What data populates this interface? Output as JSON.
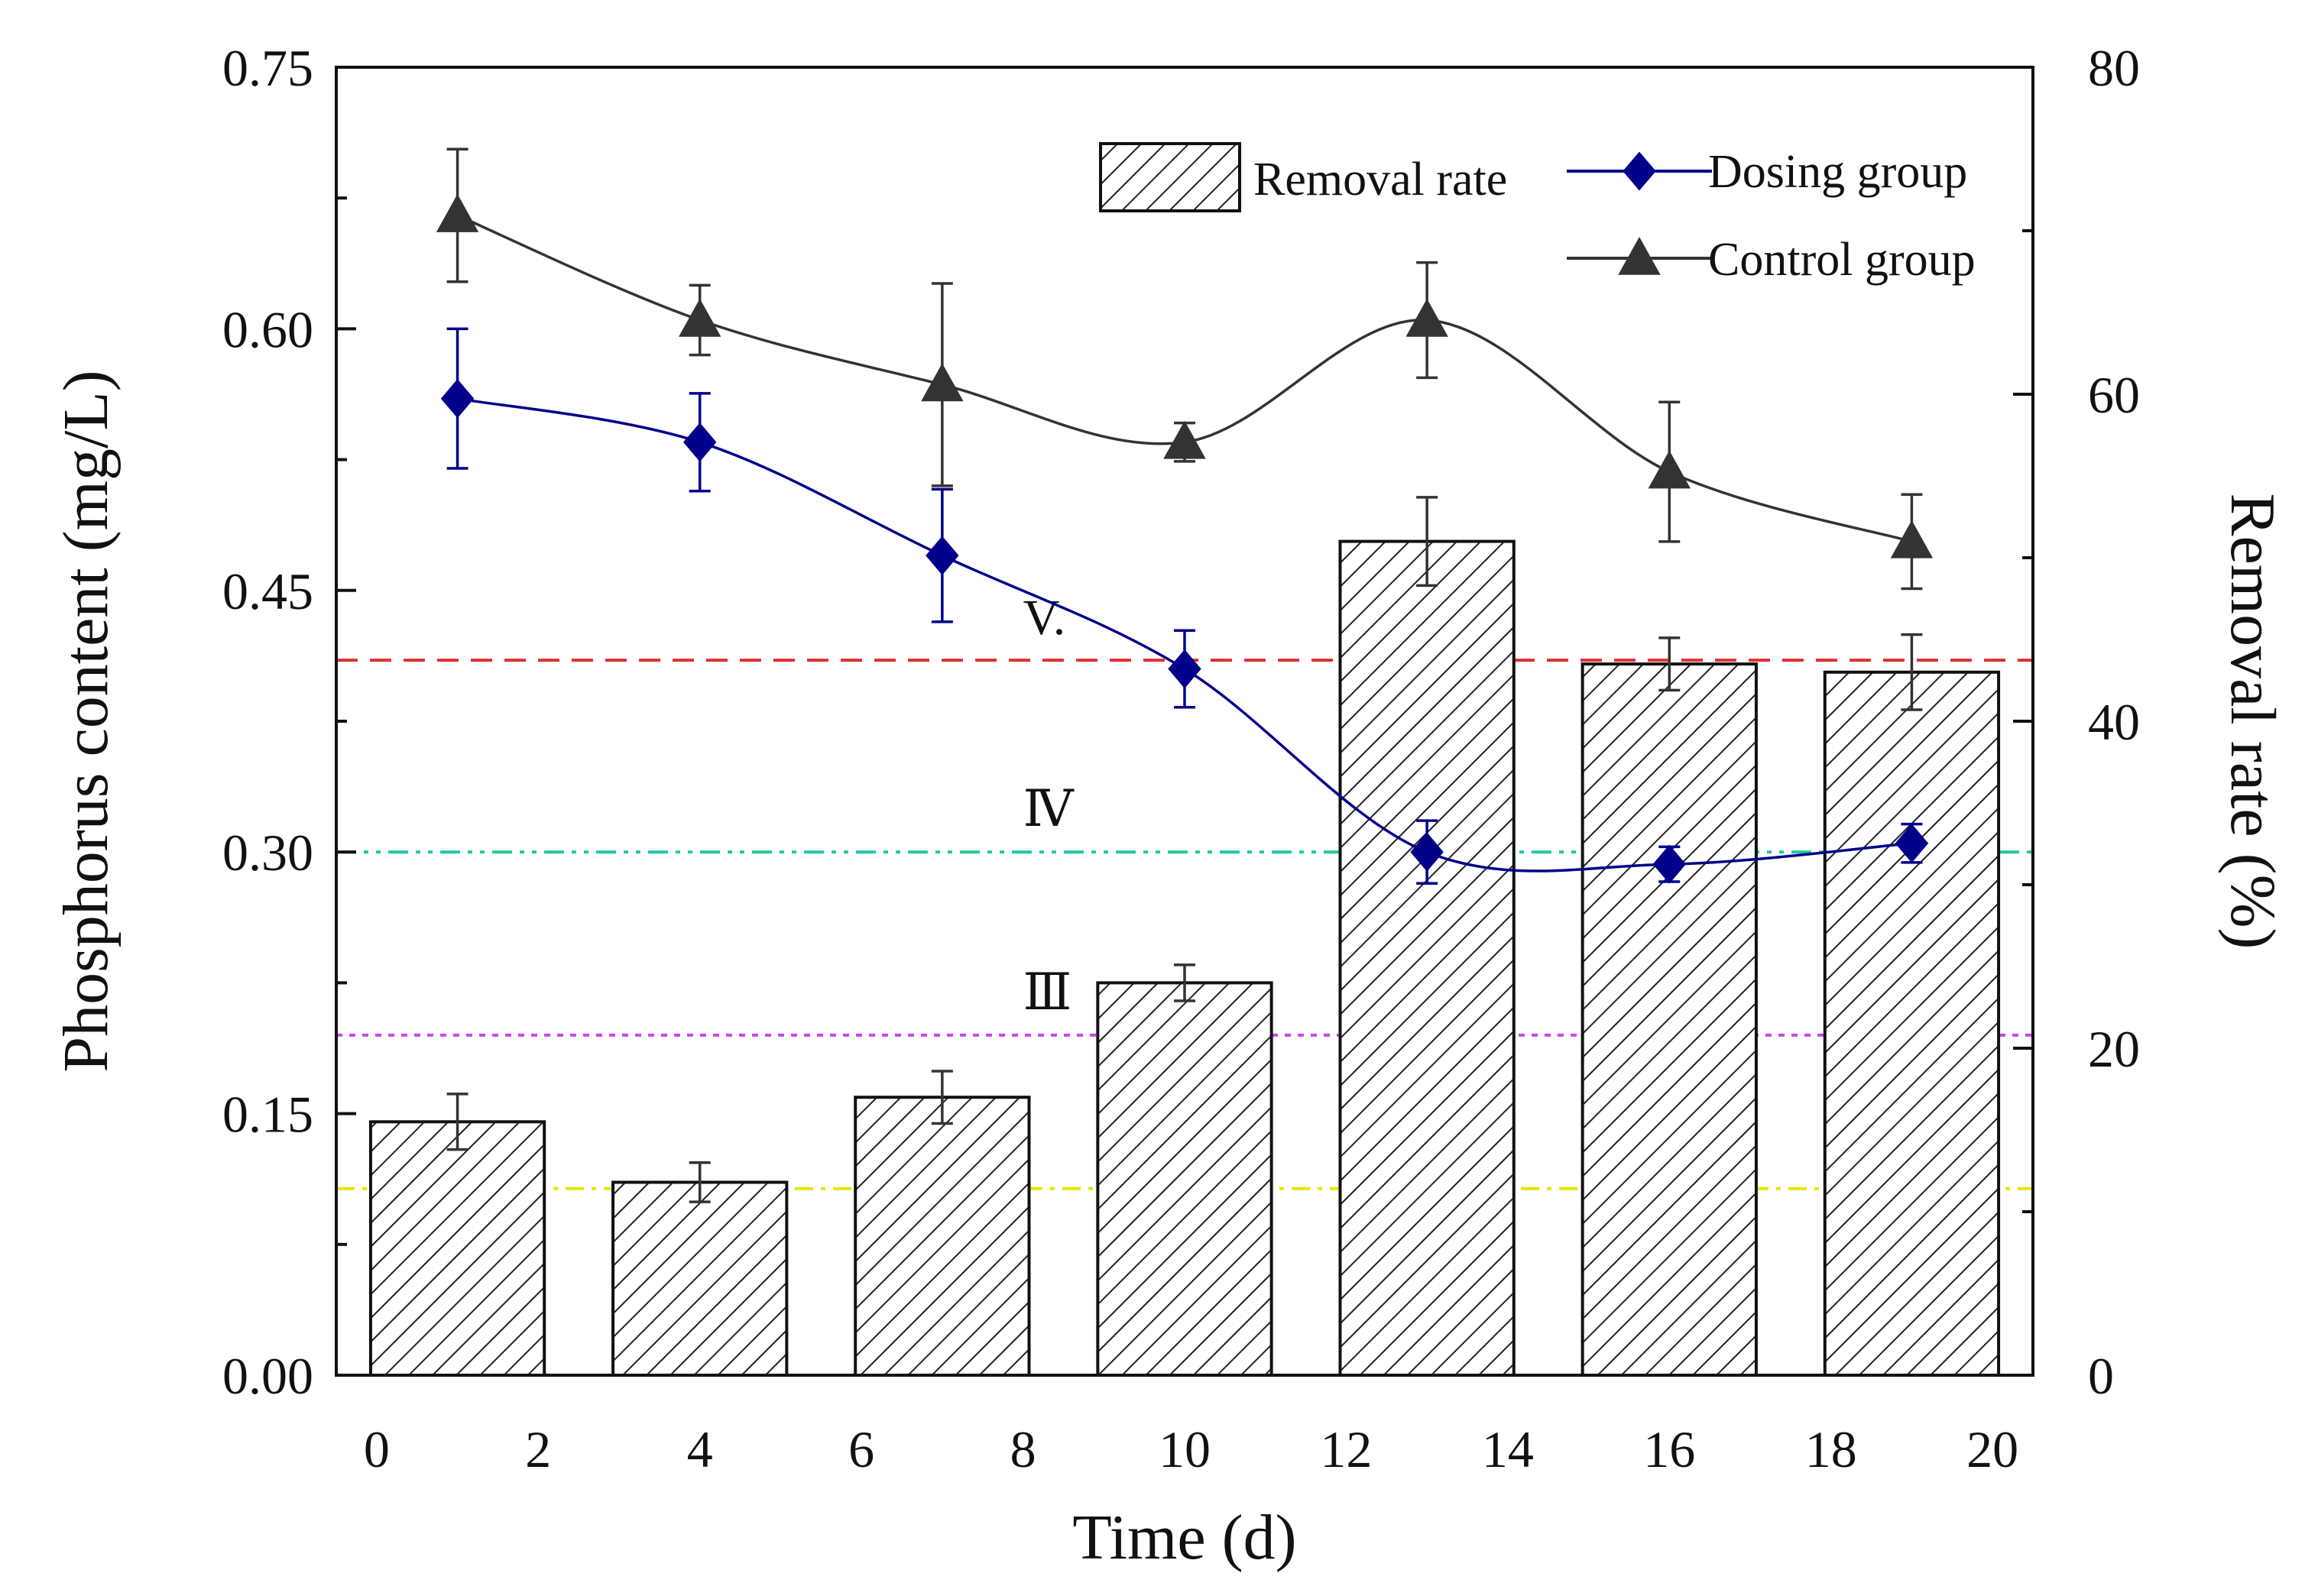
{
  "chart_data": {
    "type": "bar+line",
    "title": "",
    "xlabel": "Time (d)",
    "ylabel_left": "Phosphorus content (mg/L)",
    "ylabel_right": "Removal rate (%)",
    "x_range": [
      -0.5,
      20.5
    ],
    "x_ticks": [
      0,
      2,
      4,
      6,
      8,
      10,
      12,
      14,
      16,
      18,
      20
    ],
    "ylim_left": [
      0,
      0.75
    ],
    "y_ticks_left": [
      0.0,
      0.15,
      0.3,
      0.45,
      0.6,
      0.75
    ],
    "y_tick_labels_left": [
      "0.00",
      "0.15",
      "0.30",
      "0.45",
      "0.60",
      "0.75"
    ],
    "ylim_right": [
      0,
      80
    ],
    "y_ticks_right": [
      0,
      20,
      40,
      60,
      80
    ],
    "grid": false,
    "legend_position": "top-right",
    "legend": [
      {
        "name": "Removal rate",
        "style": "hatched-bar"
      },
      {
        "name": "Dosing group",
        "style": "line-diamond",
        "color": "#00008b"
      },
      {
        "name": "Control group",
        "style": "line-triangle",
        "color": "#333333"
      }
    ],
    "bars": {
      "name": "Removal rate",
      "axis": "right",
      "x": [
        1,
        4,
        7,
        10,
        13,
        16,
        19
      ],
      "values": [
        15.5,
        11.8,
        17,
        24,
        51,
        43.5,
        43
      ],
      "errors": [
        1.7,
        1.2,
        1.6,
        1.1,
        2.7,
        1.6,
        2.3
      ]
    },
    "series": [
      {
        "name": "Dosing group",
        "axis": "left",
        "color": "#00008b",
        "marker": "diamond",
        "x": [
          1,
          4,
          7,
          10,
          13,
          16,
          19
        ],
        "values": [
          0.56,
          0.535,
          0.47,
          0.405,
          0.3,
          0.293,
          0.305
        ],
        "errors": [
          0.04,
          0.028,
          0.038,
          0.022,
          0.018,
          0.01,
          0.011
        ]
      },
      {
        "name": "Control group",
        "axis": "left",
        "color": "#333333",
        "marker": "triangle",
        "x": [
          1,
          4,
          7,
          10,
          13,
          16,
          19
        ],
        "values": [
          0.665,
          0.605,
          0.568,
          0.535,
          0.605,
          0.518,
          0.478
        ],
        "errors": [
          0.038,
          0.02,
          0.058,
          0.011,
          0.033,
          0.04,
          0.027
        ]
      }
    ],
    "reference_lines": [
      {
        "label": "V.",
        "value": 0.41,
        "color": "#e03030",
        "dash": "dash",
        "axis": "left"
      },
      {
        "label": "Ⅳ",
        "value": 0.3,
        "color": "#20c8a0",
        "dash": "dashdotdot",
        "axis": "left"
      },
      {
        "label": "Ⅲ",
        "value": 0.195,
        "color": "#cc44ee",
        "dash": "dot",
        "axis": "left"
      },
      {
        "label": "",
        "value": 0.107,
        "color": "#e6e600",
        "dash": "dashdot",
        "axis": "left"
      }
    ]
  }
}
